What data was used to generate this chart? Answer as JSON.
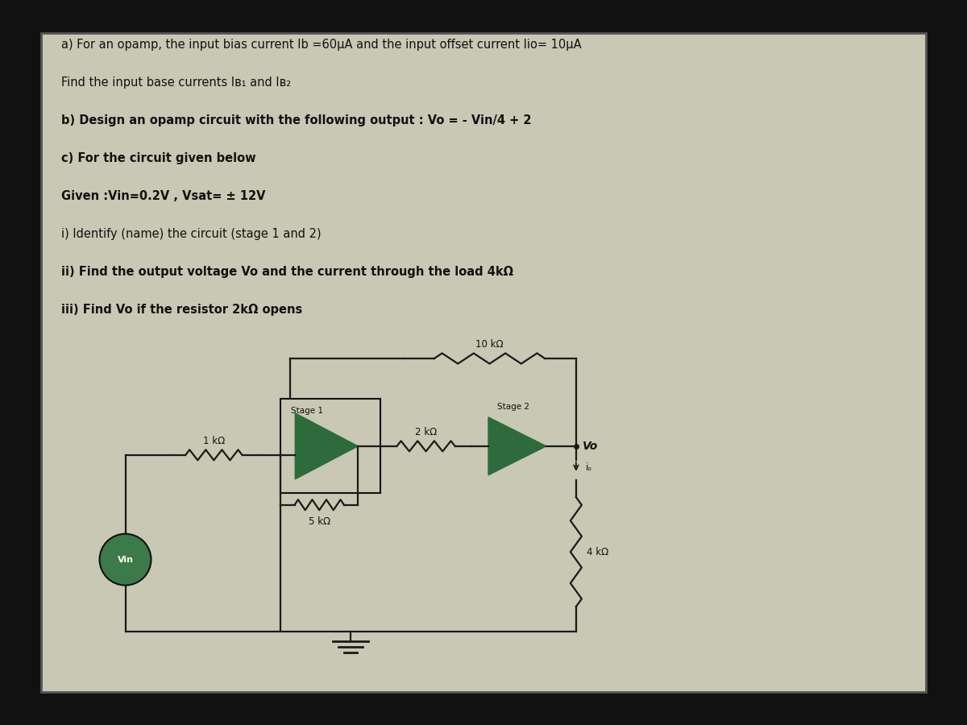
{
  "bg_color": "#c8c8b4",
  "outer_bg": "#111111",
  "text_lines": [
    "a) For an opamp, the input bias current Ib =60μA and the input offset current Iio= 10μA",
    "Find the input base currents Iʙ₁ and Iʙ₂",
    "b) Design an opamp circuit with the following output : Vo = - Vin/4 + 2",
    "c) For the circuit given below",
    "Given :Vin=0.2V , Vsat= ± 12V",
    "i) Identify (name) the circuit (stage 1 and 2)",
    "ii) Find the output voltage Vo and the current through the load 4kΩ",
    "iii) Find Vo if the resistor 2kΩ opens"
  ],
  "dark_green": "#2d6b3c",
  "wire_color": "#1a1a1a",
  "text_color": "#111111",
  "bold_text": [
    "b) Design an opamp circuit with the following output : Vo = - Vin/4 + 2",
    "c) For the circuit given below",
    "Given :Vin=0.2V , Vsat= ± 12V",
    "ii) Find the output voltage Vo and the current through the load 4kΩ",
    "iii) Find Vo if the resistor 2kΩ opens"
  ]
}
